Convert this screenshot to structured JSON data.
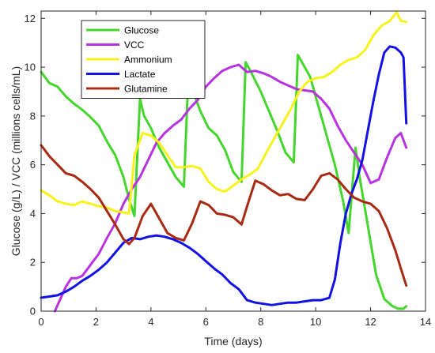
{
  "chart_data": {
    "type": "line",
    "title": "",
    "xlabel": "Time (days)",
    "ylabel": "Glucose (g/L) / VCC (millions cells/mL)",
    "xlim": [
      0,
      14
    ],
    "ylim": [
      0,
      12.3
    ],
    "xticks": [
      "0",
      "2",
      "4",
      "6",
      "8",
      "10",
      "12",
      "14"
    ],
    "yticks": [
      "0",
      "2",
      "4",
      "6",
      "8",
      "10",
      "12"
    ],
    "grid": false,
    "legend_position": "top-left",
    "series": [
      {
        "name": "Glucose",
        "color": "#44d62c",
        "x": [
          0,
          0.3,
          0.6,
          0.9,
          1.2,
          1.5,
          1.8,
          2.1,
          2.4,
          2.7,
          3.0,
          3.2,
          3.4,
          3.6,
          3.75,
          4.0,
          4.3,
          4.6,
          4.9,
          5.2,
          5.35,
          5.5,
          5.8,
          6.1,
          6.4,
          6.7,
          7.0,
          7.3,
          7.45,
          7.6,
          8.0,
          8.3,
          8.6,
          8.9,
          9.2,
          9.35,
          9.5,
          9.8,
          10.1,
          10.4,
          10.7,
          11.0,
          11.2,
          11.45,
          11.6,
          11.9,
          12.2,
          12.5,
          12.8,
          13.0,
          13.2,
          13.3
        ],
        "y": [
          9.8,
          9.35,
          9.2,
          8.8,
          8.5,
          8.25,
          7.95,
          7.6,
          6.95,
          6.4,
          5.5,
          4.6,
          3.9,
          8.7,
          8.0,
          7.5,
          6.7,
          6.1,
          5.5,
          5.1,
          9.3,
          9.1,
          8.2,
          7.5,
          7.2,
          6.6,
          5.7,
          5.3,
          10.2,
          9.9,
          9.0,
          8.2,
          7.4,
          6.5,
          6.1,
          10.5,
          10.2,
          9.6,
          8.4,
          7.2,
          6.0,
          4.5,
          3.2,
          6.7,
          5.5,
          3.5,
          1.5,
          0.5,
          0.2,
          0.1,
          0.1,
          0.2
        ]
      },
      {
        "name": "VCC",
        "color": "#b832e0",
        "x": [
          0.5,
          0.7,
          0.9,
          1.1,
          1.3,
          1.5,
          1.8,
          2.1,
          2.4,
          2.7,
          3.0,
          3.3,
          3.6,
          3.9,
          4.2,
          4.5,
          4.8,
          5.1,
          5.4,
          5.7,
          6.0,
          6.3,
          6.6,
          6.9,
          7.2,
          7.5,
          7.8,
          8.1,
          8.4,
          8.7,
          9.0,
          9.3,
          9.6,
          9.9,
          10.2,
          10.5,
          10.8,
          11.1,
          11.4,
          11.7,
          12.0,
          12.3,
          12.6,
          12.9,
          13.1,
          13.3
        ],
        "y": [
          0.0,
          0.5,
          1.0,
          1.35,
          1.35,
          1.45,
          1.9,
          2.35,
          3.0,
          3.6,
          4.4,
          5.0,
          5.5,
          6.2,
          6.9,
          7.3,
          7.6,
          7.85,
          8.3,
          8.65,
          9.2,
          9.55,
          9.85,
          10.0,
          10.1,
          9.8,
          9.85,
          9.75,
          9.6,
          9.4,
          9.25,
          9.1,
          9.05,
          9.0,
          8.7,
          8.3,
          7.6,
          7.0,
          6.5,
          6.0,
          5.25,
          5.4,
          6.3,
          7.1,
          7.3,
          6.7
        ]
      },
      {
        "name": "Ammonium",
        "color": "#f7f21a",
        "x": [
          0,
          0.3,
          0.6,
          0.9,
          1.2,
          1.5,
          1.8,
          2.1,
          2.4,
          2.7,
          3.0,
          3.2,
          3.4,
          3.7,
          4.0,
          4.3,
          4.6,
          4.9,
          5.2,
          5.5,
          5.8,
          6.1,
          6.4,
          6.7,
          7.0,
          7.3,
          7.6,
          7.9,
          8.2,
          8.5,
          8.8,
          9.1,
          9.4,
          9.7,
          10.0,
          10.3,
          10.6,
          10.9,
          11.2,
          11.5,
          11.8,
          12.1,
          12.4,
          12.7,
          12.95,
          13.1,
          13.3
        ],
        "y": [
          4.95,
          4.75,
          4.5,
          4.4,
          4.35,
          4.5,
          4.4,
          4.3,
          4.25,
          4.1,
          4.05,
          4.0,
          6.4,
          7.3,
          7.2,
          6.9,
          6.4,
          5.9,
          5.9,
          5.95,
          5.85,
          5.3,
          5.0,
          4.9,
          5.15,
          5.4,
          5.6,
          5.85,
          6.5,
          7.1,
          7.7,
          8.3,
          9.0,
          9.4,
          9.55,
          9.6,
          9.8,
          10.1,
          10.3,
          10.4,
          10.7,
          11.3,
          11.7,
          11.9,
          12.25,
          11.9,
          11.85
        ]
      },
      {
        "name": "Lactate",
        "color": "#1111e6",
        "x": [
          0,
          0.3,
          0.6,
          0.9,
          1.2,
          1.5,
          1.8,
          2.1,
          2.4,
          2.7,
          3.0,
          3.3,
          3.6,
          3.9,
          4.2,
          4.5,
          4.8,
          5.1,
          5.4,
          5.7,
          6.0,
          6.3,
          6.6,
          6.9,
          7.2,
          7.5,
          7.8,
          8.1,
          8.4,
          8.7,
          9.0,
          9.3,
          9.6,
          9.9,
          10.2,
          10.5,
          10.7,
          10.9,
          11.1,
          11.3,
          11.5,
          11.7,
          11.9,
          12.1,
          12.3,
          12.5,
          12.7,
          12.9,
          13.1,
          13.2,
          13.3
        ],
        "y": [
          0.55,
          0.6,
          0.65,
          0.8,
          1.0,
          1.25,
          1.45,
          1.7,
          2.0,
          2.4,
          2.8,
          3.0,
          2.95,
          3.05,
          3.1,
          3.05,
          2.95,
          2.8,
          2.6,
          2.35,
          2.05,
          1.75,
          1.5,
          1.15,
          0.9,
          0.45,
          0.35,
          0.3,
          0.25,
          0.3,
          0.35,
          0.35,
          0.4,
          0.45,
          0.45,
          0.55,
          1.3,
          2.8,
          4.0,
          4.8,
          5.4,
          6.2,
          7.4,
          8.6,
          9.7,
          10.6,
          10.85,
          10.8,
          10.6,
          10.4,
          7.7
        ]
      },
      {
        "name": "Glutamine",
        "color": "#a82a13",
        "x": [
          0,
          0.3,
          0.6,
          0.9,
          1.2,
          1.5,
          1.8,
          2.1,
          2.4,
          2.7,
          3.0,
          3.2,
          3.4,
          3.7,
          4.0,
          4.3,
          4.6,
          4.9,
          5.2,
          5.5,
          5.8,
          6.1,
          6.4,
          6.7,
          7.0,
          7.3,
          7.5,
          7.8,
          8.1,
          8.4,
          8.7,
          9.0,
          9.3,
          9.6,
          9.9,
          10.2,
          10.5,
          10.8,
          11.1,
          11.4,
          11.7,
          12.0,
          12.3,
          12.6,
          12.9,
          13.1,
          13.3
        ],
        "y": [
          6.8,
          6.35,
          6.0,
          5.65,
          5.55,
          5.3,
          5.0,
          4.65,
          4.1,
          3.55,
          2.95,
          2.75,
          3.0,
          3.9,
          4.4,
          3.8,
          3.2,
          3.0,
          2.9,
          3.6,
          4.5,
          4.35,
          4.0,
          3.95,
          3.85,
          3.55,
          4.3,
          5.35,
          5.2,
          4.95,
          4.75,
          4.8,
          4.6,
          4.55,
          5.0,
          5.55,
          5.65,
          5.4,
          5.0,
          4.65,
          4.5,
          4.4,
          4.1,
          3.4,
          2.5,
          1.75,
          1.05
        ]
      }
    ],
    "legend": [
      "Glucose",
      "VCC",
      "Ammonium",
      "Lactate",
      "Glutamine"
    ]
  }
}
